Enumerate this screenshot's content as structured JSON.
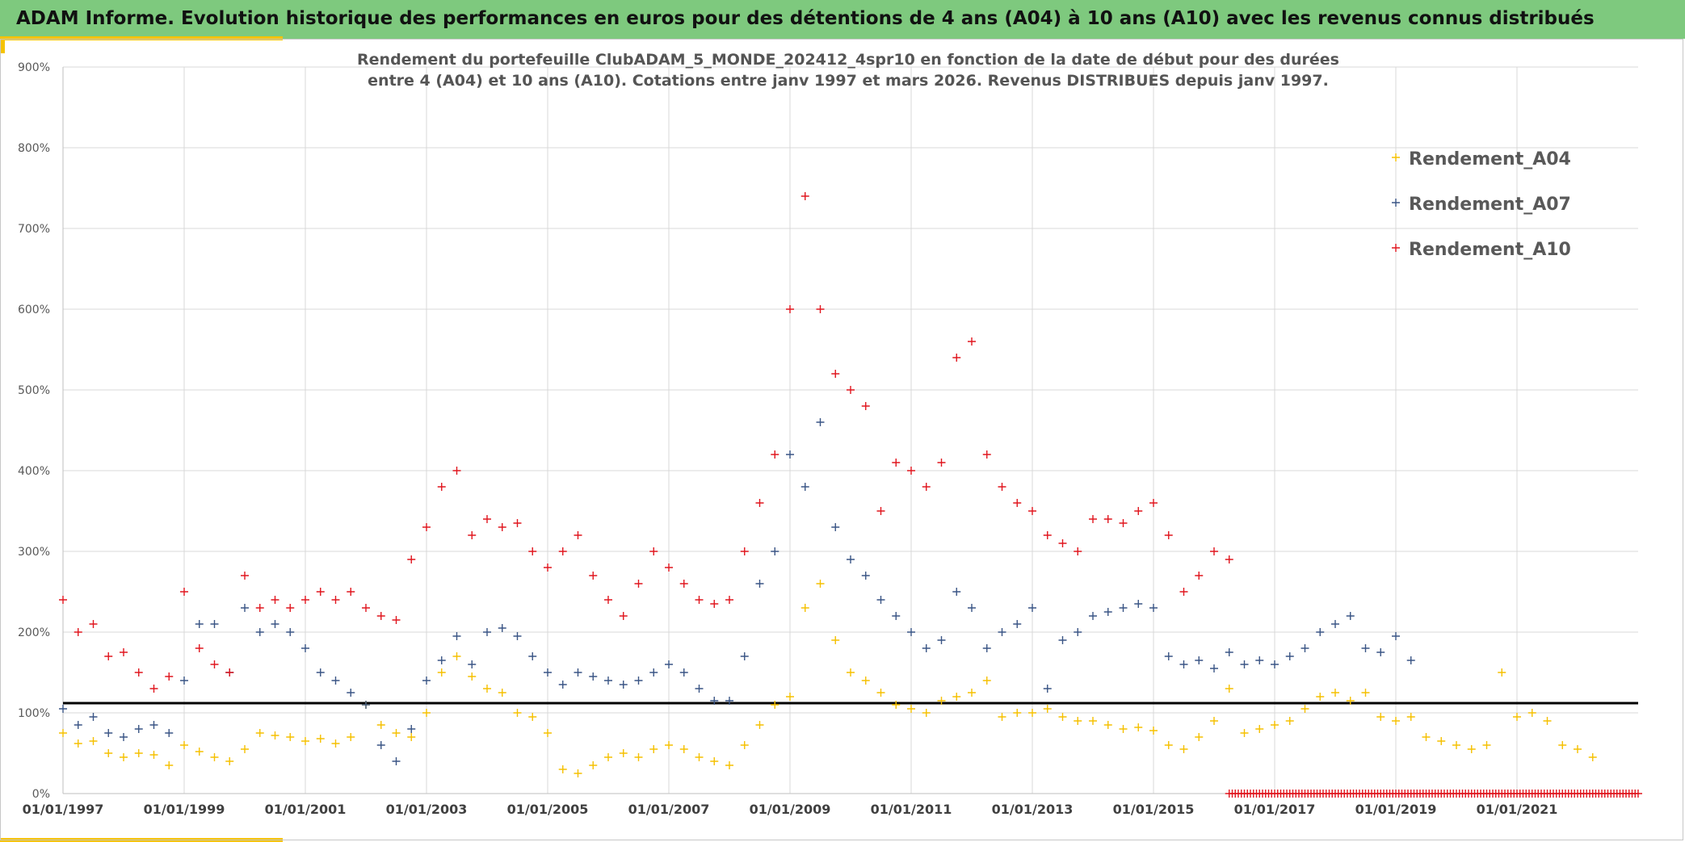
{
  "header": {
    "title": "ADAM Informe. Evolution historique des performances en euros pour des détentions de 4 ans (A04) à 10 ans (A10) avec les revenus connus distribués"
  },
  "colors": {
    "header_bg": "#7ec97e",
    "accent": "#f5c300",
    "a04": "#f5c000",
    "a07": "#3a5585",
    "a10": "#e0161e",
    "reference_line": "#000000"
  },
  "chart_data": {
    "type": "scatter",
    "title_lines": [
      "Rendement du portefeuille ClubADAM_5_MONDE_202412_4spr10  en fonction de la date de début pour des durées",
      "entre 4 (A04) et 10 ans (A10). Cotations entre janv 1997 et mars 2026. Revenus DISTRIBUES depuis janv 1997."
    ],
    "marker": "+",
    "x_axis": {
      "type": "date",
      "range": [
        "1997-01-01",
        "2023-01-01"
      ],
      "tick_labels": [
        "01/01/1997",
        "01/01/1999",
        "01/01/2001",
        "01/01/2003",
        "01/01/2005",
        "01/01/2007",
        "01/01/2009",
        "01/01/2011",
        "01/01/2013",
        "01/01/2015",
        "01/01/2017",
        "01/01/2019",
        "01/01/2021"
      ],
      "tick_years": [
        1997,
        1999,
        2001,
        2003,
        2005,
        2007,
        2009,
        2011,
        2013,
        2015,
        2017,
        2019,
        2021
      ]
    },
    "y_axis": {
      "range": [
        0,
        900
      ],
      "unit": "%",
      "tick_labels": [
        "0%",
        "100%",
        "200%",
        "300%",
        "400%",
        "500%",
        "600%",
        "700%",
        "800%",
        "900%"
      ],
      "tick_values": [
        0,
        100,
        200,
        300,
        400,
        500,
        600,
        700,
        800,
        900
      ]
    },
    "grid": true,
    "legend": {
      "position": "top-right",
      "entries": [
        "Rendement_A04",
        "Rendement_A07",
        "Rendement_A10"
      ]
    },
    "reference_line": {
      "y": 112
    },
    "series": [
      {
        "name": "Rendement_A04",
        "color": "#f5c000",
        "x": [
          1997.0,
          1997.25,
          1997.5,
          1997.75,
          1998.0,
          1998.25,
          1998.5,
          1998.75,
          1999.0,
          1999.25,
          1999.5,
          1999.75,
          2000.0,
          2000.25,
          2000.5,
          2000.75,
          2001.0,
          2001.25,
          2001.5,
          2001.75,
          2002.0,
          2002.25,
          2002.5,
          2002.75,
          2003.0,
          2003.25,
          2003.5,
          2003.75,
          2004.0,
          2004.25,
          2004.5,
          2004.75,
          2005.0,
          2005.25,
          2005.5,
          2005.75,
          2006.0,
          2006.25,
          2006.5,
          2006.75,
          2007.0,
          2007.25,
          2007.5,
          2007.75,
          2008.0,
          2008.25,
          2008.5,
          2008.75,
          2009.0,
          2009.25,
          2009.5,
          2009.75,
          2010.0,
          2010.25,
          2010.5,
          2010.75,
          2011.0,
          2011.25,
          2011.5,
          2011.75,
          2012.0,
          2012.25,
          2012.5,
          2012.75,
          2013.0,
          2013.25,
          2013.5,
          2013.75,
          2014.0,
          2014.25,
          2014.5,
          2014.75,
          2015.0,
          2015.25,
          2015.5,
          2015.75,
          2016.0,
          2016.25,
          2016.5,
          2016.75,
          2017.0,
          2017.25,
          2017.5,
          2017.75,
          2018.0,
          2018.25,
          2018.5,
          2018.75,
          2019.0,
          2019.25,
          2019.5,
          2019.75,
          2020.0,
          2020.25,
          2020.5,
          2020.75,
          2021.0,
          2021.25,
          2021.5,
          2021.75,
          2022.0,
          2022.25
        ],
        "values": [
          75,
          62,
          65,
          50,
          45,
          50,
          48,
          35,
          60,
          52,
          45,
          40,
          55,
          75,
          72,
          70,
          65,
          68,
          62,
          70,
          110,
          85,
          75,
          70,
          100,
          150,
          170,
          145,
          130,
          125,
          100,
          95,
          75,
          30,
          25,
          35,
          45,
          50,
          45,
          55,
          60,
          55,
          45,
          40,
          35,
          60,
          85,
          110,
          120,
          230,
          260,
          190,
          150,
          140,
          125,
          110,
          105,
          100,
          115,
          120,
          125,
          140,
          95,
          100,
          100,
          105,
          95,
          90,
          90,
          85,
          80,
          82,
          78,
          60,
          55,
          70,
          90,
          130,
          75,
          80,
          85,
          90,
          105,
          120,
          125,
          115,
          125,
          95,
          90,
          95,
          70,
          65,
          60,
          55,
          60,
          150,
          95,
          100,
          90,
          60,
          55,
          45
        ]
      },
      {
        "name": "Rendement_A07",
        "color": "#3a5585",
        "x": [
          1997.0,
          1997.25,
          1997.5,
          1997.75,
          1998.0,
          1998.25,
          1998.5,
          1998.75,
          1999.0,
          1999.25,
          1999.5,
          1999.75,
          2000.0,
          2000.25,
          2000.5,
          2000.75,
          2001.0,
          2001.25,
          2001.5,
          2001.75,
          2002.0,
          2002.25,
          2002.5,
          2002.75,
          2003.0,
          2003.25,
          2003.5,
          2003.75,
          2004.0,
          2004.25,
          2004.5,
          2004.75,
          2005.0,
          2005.25,
          2005.5,
          2005.75,
          2006.0,
          2006.25,
          2006.5,
          2006.75,
          2007.0,
          2007.25,
          2007.5,
          2007.75,
          2008.0,
          2008.25,
          2008.5,
          2008.75,
          2009.0,
          2009.25,
          2009.5,
          2009.75,
          2010.0,
          2010.25,
          2010.5,
          2010.75,
          2011.0,
          2011.25,
          2011.5,
          2011.75,
          2012.0,
          2012.25,
          2012.5,
          2012.75,
          2013.0,
          2013.25,
          2013.5,
          2013.75,
          2014.0,
          2014.25,
          2014.5,
          2014.75,
          2015.0,
          2015.25,
          2015.5,
          2015.75,
          2016.0,
          2016.25,
          2016.5,
          2016.75,
          2017.0,
          2017.25,
          2017.5,
          2017.75,
          2018.0,
          2018.25,
          2018.5,
          2018.75,
          2019.0,
          2019.25
        ],
        "values": [
          105,
          85,
          95,
          75,
          70,
          80,
          85,
          75,
          140,
          210,
          210,
          150,
          230,
          200,
          210,
          200,
          180,
          150,
          140,
          125,
          110,
          60,
          40,
          80,
          140,
          165,
          195,
          160,
          200,
          205,
          195,
          170,
          150,
          135,
          150,
          145,
          140,
          135,
          140,
          150,
          160,
          150,
          130,
          115,
          115,
          170,
          260,
          300,
          420,
          380,
          460,
          330,
          290,
          270,
          240,
          220,
          200,
          180,
          190,
          250,
          230,
          180,
          200,
          210,
          230,
          130,
          190,
          200,
          220,
          225,
          230,
          235,
          230,
          170,
          160,
          165,
          155,
          175,
          160,
          165,
          160,
          170,
          180,
          200,
          210,
          220,
          180,
          175,
          195,
          165
        ]
      },
      {
        "name": "Rendement_A10",
        "color": "#e0161e",
        "x": [
          1997.0,
          1997.25,
          1997.5,
          1997.75,
          1998.0,
          1998.25,
          1998.5,
          1998.75,
          1999.0,
          1999.25,
          1999.5,
          1999.75,
          2000.0,
          2000.25,
          2000.5,
          2000.75,
          2001.0,
          2001.25,
          2001.5,
          2001.75,
          2002.0,
          2002.25,
          2002.5,
          2002.75,
          2003.0,
          2003.25,
          2003.5,
          2003.75,
          2004.0,
          2004.25,
          2004.5,
          2004.75,
          2005.0,
          2005.25,
          2005.5,
          2005.75,
          2006.0,
          2006.25,
          2006.5,
          2006.75,
          2007.0,
          2007.25,
          2007.5,
          2007.75,
          2008.0,
          2008.25,
          2008.5,
          2008.75,
          2009.0,
          2009.25,
          2009.5,
          2009.75,
          2010.0,
          2010.25,
          2010.5,
          2010.75,
          2011.0,
          2011.25,
          2011.5,
          2011.75,
          2012.0,
          2012.25,
          2012.5,
          2012.75,
          2013.0,
          2013.25,
          2013.5,
          2013.75,
          2014.0,
          2014.25,
          2014.5,
          2014.75,
          2015.0,
          2015.25,
          2015.5,
          2015.75,
          2016.0,
          2016.25
        ],
        "values": [
          240,
          200,
          210,
          170,
          175,
          150,
          130,
          145,
          250,
          180,
          160,
          150,
          270,
          230,
          240,
          230,
          240,
          250,
          240,
          250,
          230,
          220,
          215,
          290,
          330,
          380,
          400,
          320,
          340,
          330,
          335,
          300,
          280,
          300,
          320,
          270,
          240,
          220,
          260,
          300,
          280,
          260,
          240,
          235,
          240,
          300,
          360,
          420,
          600,
          740,
          600,
          520,
          500,
          480,
          350,
          410,
          400,
          380,
          410,
          540,
          560,
          420,
          380,
          360,
          350,
          320,
          310,
          300,
          340,
          340,
          335,
          350,
          360,
          320,
          250,
          270,
          300,
          290
        ]
      }
    ],
    "baseline_markers": {
      "y": 0,
      "x_range": [
        2016.25,
        2023.0
      ]
    }
  }
}
